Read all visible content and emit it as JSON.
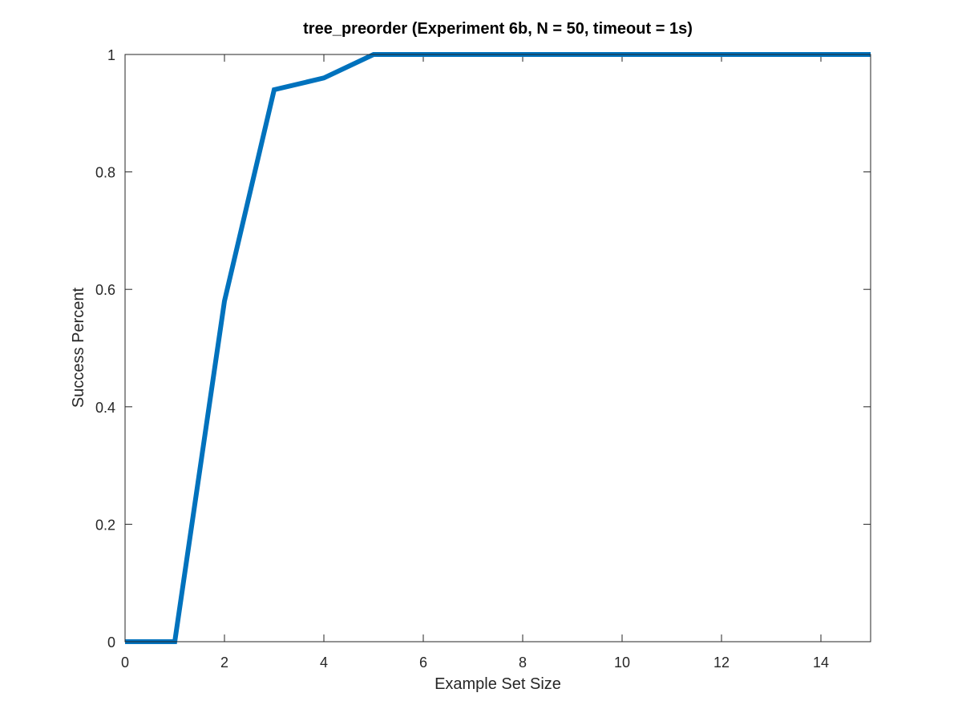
{
  "chart_data": {
    "type": "line",
    "title": "tree_preorder (Experiment 6b, N = 50, timeout = 1s)",
    "xlabel": "Example Set Size",
    "ylabel": "Success Percent",
    "xlim": [
      0,
      15
    ],
    "ylim": [
      0,
      1
    ],
    "xticks": [
      0,
      2,
      4,
      6,
      8,
      10,
      12,
      14
    ],
    "yticks": [
      0,
      0.2,
      0.4,
      0.6,
      0.8,
      1
    ],
    "xtick_labels": [
      "0",
      "2",
      "4",
      "6",
      "8",
      "10",
      "12",
      "14"
    ],
    "ytick_labels": [
      "0",
      "0.2",
      "0.4",
      "0.6",
      "0.8",
      "1"
    ],
    "grid": false,
    "series": [
      {
        "color": "#0072BD",
        "x": [
          0,
          1,
          2,
          3,
          4,
          5,
          6,
          7,
          8,
          9,
          10,
          11,
          12,
          13,
          14,
          15
        ],
        "y": [
          0,
          0,
          0.58,
          0.94,
          0.96,
          1,
          1,
          1,
          1,
          1,
          1,
          1,
          1,
          1,
          1,
          1
        ]
      }
    ]
  }
}
